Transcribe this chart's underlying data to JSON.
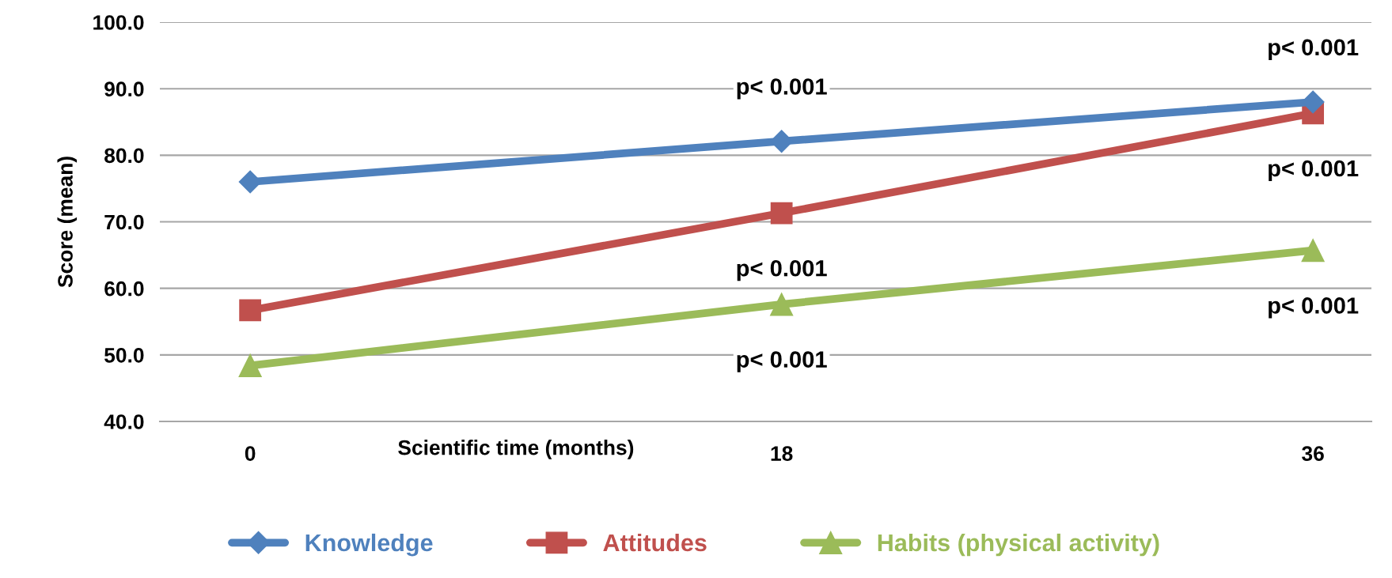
{
  "chart_data": {
    "type": "line",
    "xlabel": "Scientific time (months)",
    "ylabel": "Score (mean)",
    "categories": [
      "0",
      "18",
      "36"
    ],
    "series": [
      {
        "name": "Knowledge",
        "color": "#4f81bd",
        "marker": "diamond",
        "values": [
          76.0,
          82.1,
          88.0
        ]
      },
      {
        "name": "Attitudes",
        "color": "#c0504d",
        "marker": "square",
        "values": [
          56.7,
          71.3,
          86.3
        ]
      },
      {
        "name": "Habits (physical activity)",
        "color": "#9bbb59",
        "marker": "triangle",
        "values": [
          48.4,
          57.6,
          65.7
        ]
      }
    ],
    "ylim": [
      40,
      100
    ],
    "yticks": [
      {
        "value": 40,
        "label": "40.0"
      },
      {
        "value": 50,
        "label": "50.0"
      },
      {
        "value": 60,
        "label": "60.0"
      },
      {
        "value": 70,
        "label": "70.0"
      },
      {
        "value": 80,
        "label": "80.0"
      },
      {
        "value": 90,
        "label": "90.0"
      },
      {
        "value": 100,
        "label": "100.0"
      }
    ],
    "grid": "y",
    "legend": "bottom",
    "line_style": "solid",
    "annotations": [
      {
        "text": "p< 0.001",
        "x": "18",
        "y": 82.1
      },
      {
        "text": "p< 0.001",
        "x": "18",
        "y": 71.3
      },
      {
        "text": "p< 0.001",
        "x": "18",
        "y": 57.6
      },
      {
        "text": "p< 0.001",
        "x": "36",
        "y": 88.0
      },
      {
        "text": "p< 0.001",
        "x": "36",
        "y": 86.3
      },
      {
        "text": "p< 0.001",
        "x": "36",
        "y": 65.7
      }
    ]
  }
}
